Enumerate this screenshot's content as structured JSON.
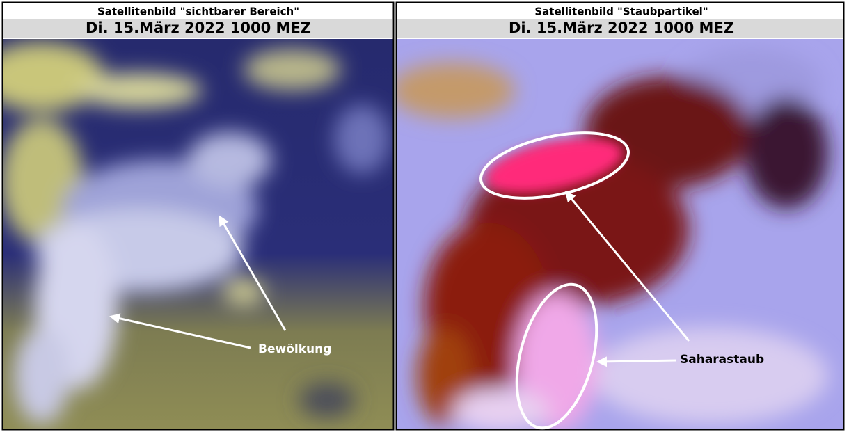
{
  "panels": [
    {
      "title": "Satellitenbild \"sichtbarer Bereich\"",
      "subtitle": "Di. 15.März 2022 1000 MEZ",
      "annotation": "Bewölkung"
    },
    {
      "title": "Satellitenbild \"Staubpartikel\"",
      "subtitle": "Di. 15.März 2022 1000 MEZ",
      "annotation": "Saharastaub"
    }
  ]
}
